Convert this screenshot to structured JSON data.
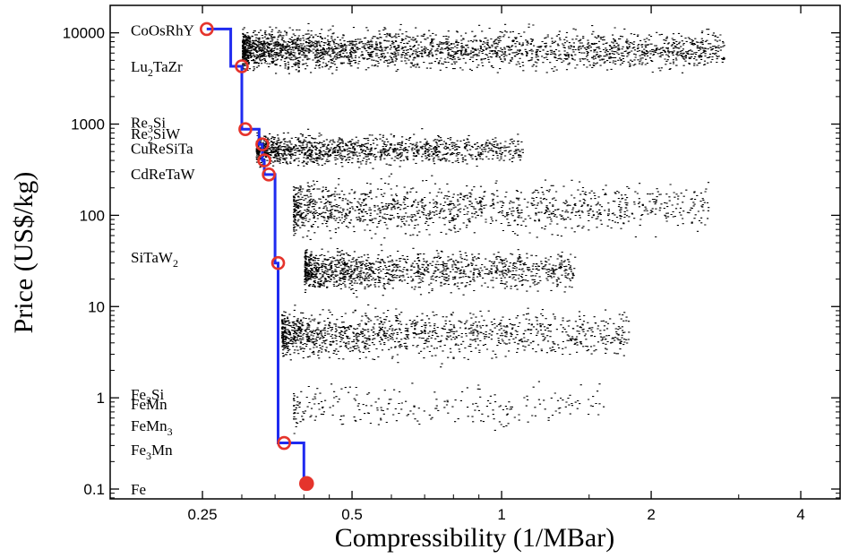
{
  "chart_data": {
    "type": "scatter",
    "x_scale": "log",
    "y_scale": "log",
    "xlabel": "Compressibility (1/MBar)",
    "ylabel": "Price (US$/kg)",
    "xlim": [
      0.163,
      4.8
    ],
    "ylim": [
      0.078,
      20000
    ],
    "grid": false,
    "x_ticks": [
      {
        "value": 0.25,
        "label": "0.25"
      },
      {
        "value": 0.5,
        "label": "0.5"
      },
      {
        "value": 1,
        "label": "1"
      },
      {
        "value": 2,
        "label": "2"
      },
      {
        "value": 4,
        "label": "4"
      }
    ],
    "y_ticks": [
      {
        "value": 0.1,
        "label": "0.1"
      },
      {
        "value": 1,
        "label": "1"
      },
      {
        "value": 10,
        "label": "10"
      },
      {
        "value": 100,
        "label": "100"
      },
      {
        "value": 1000,
        "label": "1000"
      },
      {
        "value": 10000,
        "label": "10000"
      }
    ],
    "colors": {
      "scatter": "#000000",
      "frontier_line": "#1f2bf0",
      "frontier_markers": "#e5342c"
    },
    "scatter_clusters": [
      {
        "x_range": [
          0.3,
          2.8
        ],
        "y_center": 6500,
        "y_spread": [
          2500,
          14000
        ],
        "density": "very dense"
      },
      {
        "x_range": [
          0.32,
          1.1
        ],
        "y_center": 520,
        "y_spread": [
          250,
          950
        ],
        "density": "dense"
      },
      {
        "x_range": [
          0.38,
          2.6
        ],
        "y_center": 120,
        "y_spread": [
          30,
          300
        ],
        "density": "dense"
      },
      {
        "x_range": [
          0.4,
          1.4
        ],
        "y_center": 25,
        "y_spread": [
          10,
          60
        ],
        "density": "dense"
      },
      {
        "x_range": [
          0.36,
          1.8
        ],
        "y_center": 5,
        "y_spread": [
          1.5,
          12
        ],
        "density": "dense"
      },
      {
        "x_range": [
          0.38,
          1.6
        ],
        "y_center": 0.8,
        "y_spread": [
          0.3,
          2
        ],
        "density": "sparse"
      }
    ],
    "pareto_frontier": [
      {
        "label": "CoOsRhY",
        "x": 0.255,
        "y": 11000
      },
      {
        "label": "Lu2TaZr",
        "x": 0.3,
        "y": 4300
      },
      {
        "label": "Re3Si",
        "x": 0.305,
        "y": 880
      },
      {
        "label": "Re2SiW",
        "x": 0.33,
        "y": 600
      },
      {
        "label": "CuReSiTa",
        "x": 0.333,
        "y": 400
      },
      {
        "label": "CdReTaW",
        "x": 0.34,
        "y": 280
      },
      {
        "label": "SiTaW2",
        "x": 0.355,
        "y": 30
      },
      {
        "label": "Fe3Si",
        "x": 0.365,
        "y": 0.32
      },
      {
        "label": "Fe",
        "x": 0.405,
        "y": 0.115
      }
    ],
    "frontier_step_path": [
      [
        0.255,
        11000
      ],
      [
        0.285,
        11000
      ],
      [
        0.285,
        4300
      ],
      [
        0.3,
        4300
      ],
      [
        0.3,
        880
      ],
      [
        0.325,
        880
      ],
      [
        0.325,
        600
      ],
      [
        0.33,
        600
      ],
      [
        0.33,
        400
      ],
      [
        0.333,
        400
      ],
      [
        0.333,
        280
      ],
      [
        0.35,
        280
      ],
      [
        0.35,
        30
      ],
      [
        0.355,
        30
      ],
      [
        0.355,
        0.32
      ],
      [
        0.365,
        0.32
      ],
      [
        0.4,
        0.32
      ],
      [
        0.4,
        0.115
      ],
      [
        0.405,
        0.115
      ]
    ],
    "annotations": [
      {
        "base": "CoOsRhY",
        "sub": "",
        "rest": "",
        "y": 10700
      },
      {
        "base": "Lu",
        "sub": "2",
        "rest": "TaZr",
        "y": 4300
      },
      {
        "base": "Re",
        "sub": "3",
        "rest": "Si",
        "y": 1050
      },
      {
        "base": "Re",
        "sub": "2",
        "rest": "SiW",
        "y": 790
      },
      {
        "base": "CuReSiTa",
        "sub": "",
        "rest": "",
        "y": 545
      },
      {
        "base": "CdReTaW",
        "sub": "",
        "rest": "",
        "y": 285
      },
      {
        "base": "SiTaW",
        "sub": "2",
        "rest": "",
        "y": 35
      },
      {
        "base": "Fe",
        "sub": "3",
        "rest": "Si",
        "y": 1.1
      },
      {
        "base": "FeMn",
        "sub": "",
        "rest": "",
        "y": 0.86
      },
      {
        "base": "FeMn",
        "sub": "3",
        "rest": "",
        "y": 0.5
      },
      {
        "base": "Fe",
        "sub": "3",
        "rest": "Mn",
        "y": 0.27
      },
      {
        "base": "Fe",
        "sub": "",
        "rest": "",
        "y": 0.1
      }
    ]
  }
}
